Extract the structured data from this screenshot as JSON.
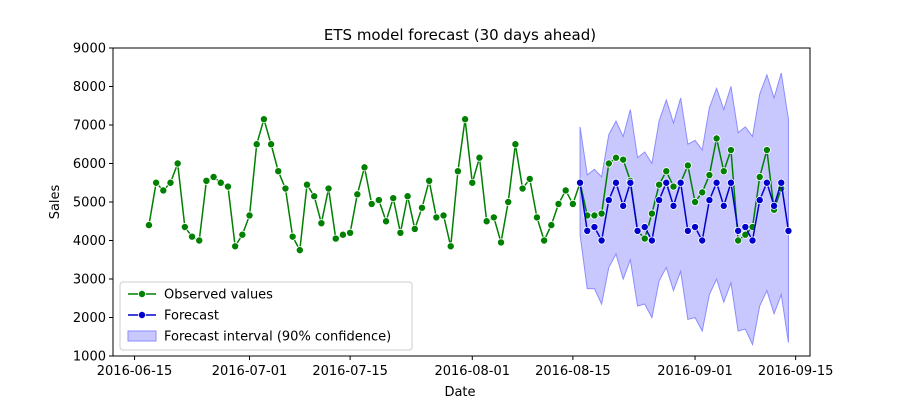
{
  "chart_data": {
    "type": "line",
    "title": "ETS model forecast (30 days ahead)",
    "xlabel": "Date",
    "ylabel": "Sales",
    "ylim": [
      1000,
      9000
    ],
    "yticks": [
      1000,
      2000,
      3000,
      4000,
      5000,
      6000,
      7000,
      8000,
      9000
    ],
    "xlim": [
      "2016-06-12",
      "2016-09-17"
    ],
    "xticks": [
      "2016-06-15",
      "2016-07-01",
      "2016-07-15",
      "2016-08-01",
      "2016-08-15",
      "2016-09-01",
      "2016-09-15"
    ],
    "grid": false,
    "legend_position": "lower left",
    "colors": {
      "observed": "#008000",
      "forecast": "#0000cd",
      "interval_fill": "#c8c8ff",
      "interval_edge": "#8c8cff"
    },
    "series": [
      {
        "name": "Observed values",
        "start_date": "2016-06-17",
        "values": [
          4400,
          5500,
          5300,
          5500,
          6000,
          4350,
          4100,
          4000,
          5550,
          5650,
          5500,
          5400,
          3850,
          4150,
          4650,
          6500,
          7150,
          6500,
          5800,
          5350,
          4100,
          3750,
          5450,
          5150,
          4450,
          5350,
          4050,
          4150,
          4200,
          5200,
          5900,
          4950,
          5050,
          4500,
          5100,
          4200,
          5150,
          4300,
          4850,
          5550,
          4600,
          4650,
          3850,
          5800,
          7150,
          5500,
          6150,
          4500,
          4600,
          3950,
          5000,
          6500,
          5350,
          5600,
          4600,
          4000,
          4400,
          4950,
          5300,
          4950,
          5500,
          4650,
          4650,
          4700,
          6000,
          6150,
          6100,
          5550,
          4250,
          4050,
          4700,
          5450,
          5800,
          5400,
          5500,
          5950,
          5000,
          5250,
          5700,
          6650,
          5800,
          6350,
          4000,
          4150,
          4350,
          5650,
          6350,
          4800,
          5350
        ]
      },
      {
        "name": "Forecast",
        "start_date": "2016-08-16",
        "values": [
          5500,
          4250,
          4350,
          4000,
          5050,
          5500,
          4900,
          5500,
          4250,
          4350,
          4000,
          5050,
          5500,
          4900,
          5500,
          4250,
          4350,
          4000,
          5050,
          5500,
          4900,
          5500,
          4250,
          4350,
          4000,
          5050,
          5500,
          4900,
          5500,
          4250
        ]
      },
      {
        "name": "Forecast interval (90% confidence)",
        "start_date": "2016-08-16",
        "lower": [
          4150,
          2750,
          2750,
          2350,
          3300,
          3650,
          3000,
          3500,
          2300,
          2350,
          2000,
          2950,
          3300,
          2700,
          3200,
          1950,
          2000,
          1650,
          2600,
          3000,
          2400,
          2900,
          1650,
          1700,
          1300,
          2300,
          2700,
          2100,
          2600,
          1350
        ],
        "upper": [
          6950,
          5700,
          5850,
          5650,
          6750,
          7100,
          6700,
          7400,
          6150,
          6300,
          6000,
          7100,
          7650,
          7050,
          7700,
          6500,
          6600,
          6350,
          7450,
          7950,
          7400,
          8000,
          6800,
          6950,
          6700,
          7800,
          8300,
          7700,
          8350,
          7150
        ]
      }
    ]
  }
}
